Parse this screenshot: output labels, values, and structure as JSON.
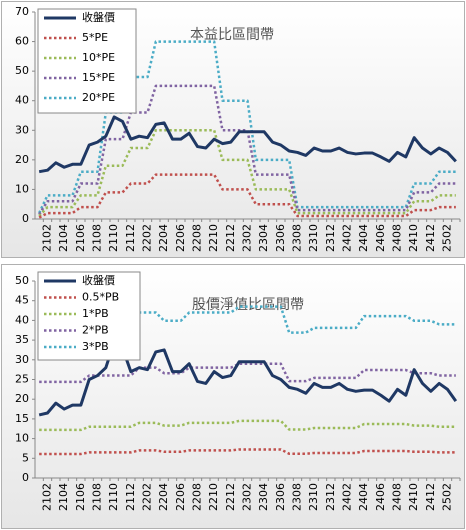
{
  "chart_data": [
    {
      "type": "line",
      "title": "本益比區間帶",
      "categories": [
        null,
        "2102",
        null,
        "2104",
        null,
        "2106",
        null,
        "2108",
        null,
        "2110",
        null,
        "2112",
        null,
        "2202",
        null,
        "2204",
        null,
        "2206",
        null,
        "2208",
        null,
        "2210",
        null,
        "2212",
        null,
        "2302",
        null,
        "2304",
        null,
        "2306",
        null,
        "2308",
        null,
        "2310",
        null,
        "2312",
        null,
        "2402",
        null,
        "2404",
        null,
        "2406",
        null,
        "2408",
        null,
        "2410",
        null,
        "2412",
        null,
        "2502",
        null
      ],
      "series": [
        {
          "name": "收盤價",
          "color": "#1f3864",
          "style": "solid",
          "values": [
            16,
            16.5,
            19,
            17.5,
            18.5,
            18.5,
            25,
            26,
            28,
            34.5,
            33,
            27,
            28,
            27.5,
            32,
            32.5,
            27,
            27,
            29,
            24.5,
            24,
            27,
            25.5,
            26,
            29.5,
            29.5,
            29.5,
            29.5,
            26,
            25,
            23,
            22.5,
            21.5,
            24,
            23,
            23,
            24,
            22.5,
            22,
            22.3,
            22.3,
            21,
            19.5,
            22.5,
            21,
            27.5,
            24,
            22,
            24,
            22.5,
            19.5
          ]
        },
        {
          "name": "5*PE",
          "color": "#c0504d",
          "style": "dotted",
          "values": [
            0.5,
            2,
            2,
            2,
            2,
            4,
            4,
            4,
            9,
            9,
            9,
            12,
            12,
            12,
            15,
            15,
            15,
            15,
            15,
            15,
            15,
            15,
            10,
            10,
            10,
            10,
            5,
            5,
            5,
            5,
            5,
            1,
            1,
            1,
            1,
            1,
            1,
            1,
            1,
            1,
            1,
            1,
            1,
            1,
            1,
            3,
            3,
            3,
            4,
            4,
            4
          ]
        },
        {
          "name": "10*PE",
          "color": "#9bbb59",
          "style": "dotted",
          "values": [
            1,
            4,
            4,
            4,
            4,
            8,
            8,
            8,
            18,
            18,
            18,
            24,
            24,
            24,
            30,
            30,
            30,
            30,
            30,
            30,
            30,
            30,
            20,
            20,
            20,
            20,
            10,
            10,
            10,
            10,
            10,
            2,
            2,
            2,
            2,
            2,
            2,
            2,
            2,
            2,
            2,
            2,
            2,
            2,
            2,
            6,
            6,
            6,
            8,
            8,
            8
          ]
        },
        {
          "name": "15*PE",
          "color": "#8064a2",
          "style": "dotted",
          "values": [
            1.5,
            6,
            6,
            6,
            6,
            12,
            12,
            12,
            27,
            27,
            27,
            36,
            36,
            36,
            45,
            45,
            45,
            45,
            45,
            45,
            45,
            45,
            30,
            30,
            30,
            30,
            15,
            15,
            15,
            15,
            15,
            3,
            3,
            3,
            3,
            3,
            3,
            3,
            3,
            3,
            3,
            3,
            3,
            3,
            3,
            9,
            9,
            9,
            12,
            12,
            12
          ]
        },
        {
          "name": "20*PE",
          "color": "#4bacc6",
          "style": "dotted",
          "values": [
            2,
            8,
            8,
            8,
            8,
            16,
            16,
            16,
            36,
            36,
            36,
            48,
            48,
            48,
            60,
            60,
            60,
            60,
            60,
            60,
            60,
            60,
            40,
            40,
            40,
            40,
            20,
            20,
            20,
            20,
            20,
            4,
            4,
            4,
            4,
            4,
            4,
            4,
            4,
            4,
            4,
            4,
            4,
            4,
            4,
            12,
            12,
            12,
            16,
            16,
            16
          ]
        }
      ],
      "ylim": [
        0,
        70
      ],
      "yticks": [
        0,
        10,
        20,
        30,
        40,
        50,
        60,
        70
      ],
      "legend": "top-left",
      "grid": false
    },
    {
      "type": "line",
      "title": "股價淨值比區間帶",
      "categories": [
        null,
        "2102",
        null,
        "2104",
        null,
        "2106",
        null,
        "2108",
        null,
        "2110",
        null,
        "2112",
        null,
        "2202",
        null,
        "2204",
        null,
        "2206",
        null,
        "2208",
        null,
        "2210",
        null,
        "2212",
        null,
        "2302",
        null,
        "2304",
        null,
        "2306",
        null,
        "2308",
        null,
        "2310",
        null,
        "2312",
        null,
        "2402",
        null,
        "2404",
        null,
        "2406",
        null,
        "2408",
        null,
        "2410",
        null,
        "2412",
        null,
        "2502",
        null
      ],
      "series": [
        {
          "name": "收盤價",
          "color": "#1f3864",
          "style": "solid",
          "values": [
            16,
            16.5,
            19,
            17.5,
            18.5,
            18.5,
            25,
            26,
            28,
            34.5,
            33,
            27,
            28,
            27.5,
            32,
            32.5,
            27,
            27,
            29,
            24.5,
            24,
            27,
            25.5,
            26,
            29.5,
            29.5,
            29.5,
            29.5,
            26,
            25,
            23,
            22.5,
            21.5,
            24,
            23,
            23,
            24,
            22.5,
            22,
            22.3,
            22.3,
            21,
            19.5,
            22.5,
            21,
            27.5,
            24,
            22,
            24,
            22.5,
            19.5
          ]
        },
        {
          "name": "0.5*PB",
          "color": "#c0504d",
          "style": "dotted",
          "values": [
            6.1,
            6.1,
            6.1,
            6.1,
            6.1,
            6.1,
            6.5,
            6.5,
            6.5,
            6.5,
            6.5,
            6.5,
            7,
            7,
            7,
            6.65,
            6.65,
            6.65,
            7,
            7,
            7,
            7,
            7,
            7,
            7.25,
            7.25,
            7.25,
            7.25,
            7.25,
            7.25,
            6.15,
            6.15,
            6.15,
            6.35,
            6.35,
            6.35,
            6.35,
            6.35,
            6.35,
            6.85,
            6.85,
            6.85,
            6.85,
            6.85,
            6.85,
            6.65,
            6.65,
            6.65,
            6.5,
            6.5,
            6.5
          ]
        },
        {
          "name": "1*PB",
          "color": "#9bbb59",
          "style": "dotted",
          "values": [
            12.2,
            12.2,
            12.2,
            12.2,
            12.2,
            12.2,
            13,
            13,
            13,
            13,
            13,
            13,
            14,
            14,
            14,
            13.3,
            13.3,
            13.3,
            14,
            14,
            14,
            14,
            14,
            14,
            14.5,
            14.5,
            14.5,
            14.5,
            14.5,
            14.5,
            12.3,
            12.3,
            12.3,
            12.7,
            12.7,
            12.7,
            12.7,
            12.7,
            12.7,
            13.7,
            13.7,
            13.7,
            13.7,
            13.7,
            13.7,
            13.3,
            13.3,
            13.3,
            13,
            13,
            13
          ]
        },
        {
          "name": "2*PB",
          "color": "#8064a2",
          "style": "dotted",
          "values": [
            24.4,
            24.4,
            24.4,
            24.4,
            24.4,
            24.4,
            26,
            26,
            26,
            26,
            26,
            26,
            28,
            28,
            28,
            26.6,
            26.6,
            26.6,
            28,
            28,
            28,
            28,
            28,
            28,
            29,
            29,
            29,
            29,
            29,
            29,
            24.6,
            24.6,
            24.6,
            25.4,
            25.4,
            25.4,
            25.4,
            25.4,
            25.4,
            27.4,
            27.4,
            27.4,
            27.4,
            27.4,
            27.4,
            26.6,
            26.6,
            26.6,
            26,
            26,
            26
          ]
        },
        {
          "name": "3*PB",
          "color": "#4bacc6",
          "style": "dotted",
          "values": [
            36.6,
            36.6,
            36.6,
            36.6,
            36.6,
            36.6,
            39,
            39,
            39,
            39,
            39,
            39,
            42,
            42,
            42,
            39.9,
            39.9,
            39.9,
            42,
            42,
            42,
            42,
            42,
            42,
            43.5,
            43.5,
            43.5,
            43.5,
            43.5,
            43.5,
            36.9,
            36.9,
            36.9,
            38.1,
            38.1,
            38.1,
            38.1,
            38.1,
            38.1,
            41.1,
            41.1,
            41.1,
            41.1,
            41.1,
            41.1,
            39.9,
            39.9,
            39.9,
            39,
            39,
            39
          ]
        }
      ],
      "ylim": [
        0,
        50
      ],
      "yticks": [
        0,
        5,
        10,
        15,
        20,
        25,
        30,
        35,
        40,
        45,
        50
      ],
      "legend": "top-left",
      "grid": false
    }
  ]
}
